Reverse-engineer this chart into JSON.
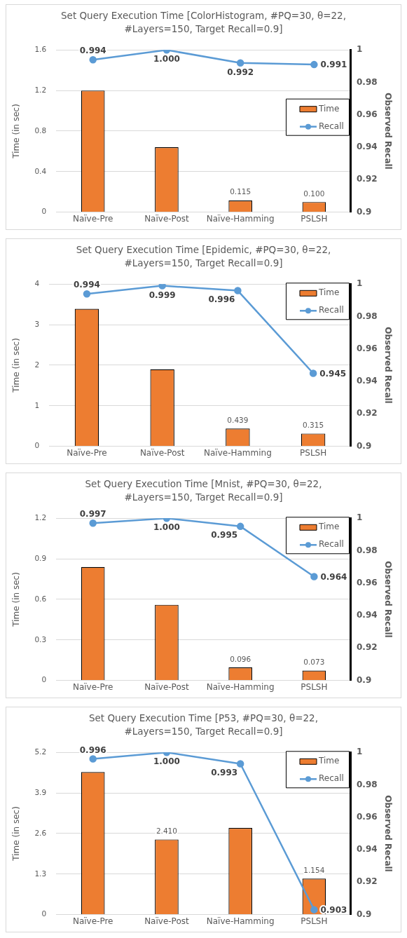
{
  "chart_data": [
    {
      "type": "bar",
      "title": "Set Query Execution Time [ColorHistogram, #PQ=30, θ=22, #Layers=150, Target Recall=0.9]",
      "ylabel": "Time (in sec)",
      "y2label": "Observed Recall",
      "categories": [
        "Naïve-Pre",
        "Naïve-Post",
        "Naïve-Hamming",
        "PSLSH"
      ],
      "series": [
        {
          "name": "Time",
          "color": "#ed7d31",
          "values": [
            1.2,
            0.64,
            0.115,
            0.1
          ],
          "value_labels": [
            null,
            null,
            "0.115",
            "0.100"
          ]
        },
        {
          "name": "Recall",
          "type": "line",
          "axis": "y2",
          "color": "#5b9bd5",
          "values": [
            0.994,
            1.0,
            0.992,
            0.991
          ],
          "value_labels": [
            "0.994",
            "1.000",
            "0.992",
            "0.991"
          ]
        }
      ],
      "ylim": [
        0,
        1.6
      ],
      "yticks": [
        0,
        0.4,
        0.8,
        1.2,
        1.6
      ],
      "y2lim": [
        0.9,
        1
      ],
      "y2ticks": [
        0.9,
        0.92,
        0.94,
        0.96,
        0.98,
        1
      ],
      "grid": "y",
      "legend": "right",
      "marker": "circle"
    },
    {
      "type": "bar",
      "title": "Set Query Execution Time [Epidemic, #PQ=30, θ=22, #Layers=150, Target Recall=0.9]",
      "ylabel": "Time (in sec)",
      "y2label": "Observed Recall",
      "categories": [
        "Naïve-Pre",
        "Naïve-Post",
        "Naïve-Hamming",
        "PSLSH"
      ],
      "series": [
        {
          "name": "Time",
          "color": "#ed7d31",
          "values": [
            3.39,
            1.9,
            0.439,
            0.315
          ],
          "value_labels": [
            null,
            null,
            "0.439",
            "0.315"
          ]
        },
        {
          "name": "Recall",
          "type": "line",
          "axis": "y2",
          "color": "#5b9bd5",
          "values": [
            0.994,
            0.999,
            0.996,
            0.945
          ],
          "value_labels": [
            "0.994",
            "0.999",
            "0.996",
            "0.945"
          ]
        }
      ],
      "ylim": [
        0,
        4
      ],
      "yticks": [
        0,
        1,
        2,
        3,
        4
      ],
      "y2lim": [
        0.9,
        1
      ],
      "y2ticks": [
        0.9,
        0.92,
        0.94,
        0.96,
        0.98,
        1
      ],
      "grid": "y",
      "legend": "top right",
      "marker": "circle"
    },
    {
      "type": "bar",
      "title": "Set Query Execution Time [Mnist, #PQ=30, θ=22, #Layers=150, Target Recall=0.9]",
      "ylabel": "Time (in sec)",
      "y2label": "Observed Recall",
      "categories": [
        "Naïve-Pre",
        "Naïve-Post",
        "Naïve-Hamming",
        "PSLSH"
      ],
      "series": [
        {
          "name": "Time",
          "color": "#ed7d31",
          "values": [
            0.84,
            0.56,
            0.096,
            0.073
          ],
          "value_labels": [
            null,
            null,
            "0.096",
            "0.073"
          ]
        },
        {
          "name": "Recall",
          "type": "line",
          "axis": "y2",
          "color": "#5b9bd5",
          "values": [
            0.997,
            1.0,
            0.995,
            0.964
          ],
          "value_labels": [
            "0.997",
            "1.000",
            "0.995",
            "0.964"
          ]
        }
      ],
      "ylim": [
        0,
        1.2
      ],
      "yticks": [
        0,
        0.3,
        0.6,
        0.9,
        1.2
      ],
      "y2lim": [
        0.9,
        1
      ],
      "y2ticks": [
        0.9,
        0.92,
        0.94,
        0.96,
        0.98,
        1
      ],
      "grid": "y",
      "legend": "top right",
      "marker": "circle"
    },
    {
      "type": "bar",
      "title": "Set Query Execution Time [P53, #PQ=30, θ=22, #Layers=150, Target Recall=0.9]",
      "ylabel": "Time (in sec)",
      "y2label": "Observed Recall",
      "categories": [
        "Naïve-Pre",
        "Naïve-Post",
        "Naïve-Hamming",
        "PSLSH"
      ],
      "series": [
        {
          "name": "Time",
          "color": "#ed7d31",
          "values": [
            4.57,
            2.41,
            2.78,
            1.154
          ],
          "value_labels": [
            null,
            "2.410",
            null,
            "1.154"
          ]
        },
        {
          "name": "Recall",
          "type": "line",
          "axis": "y2",
          "color": "#5b9bd5",
          "values": [
            0.996,
            1.0,
            0.993,
            0.903
          ],
          "value_labels": [
            "0.996",
            "1.000",
            "0.993",
            "0.903"
          ]
        }
      ],
      "ylim": [
        0,
        5.2
      ],
      "yticks": [
        0,
        1.3,
        2.6,
        3.9,
        5.2
      ],
      "y2lim": [
        0.9,
        1
      ],
      "y2ticks": [
        0.9,
        0.92,
        0.94,
        0.96,
        0.98,
        1
      ],
      "grid": "y",
      "legend": "top right",
      "marker": "circle"
    }
  ]
}
